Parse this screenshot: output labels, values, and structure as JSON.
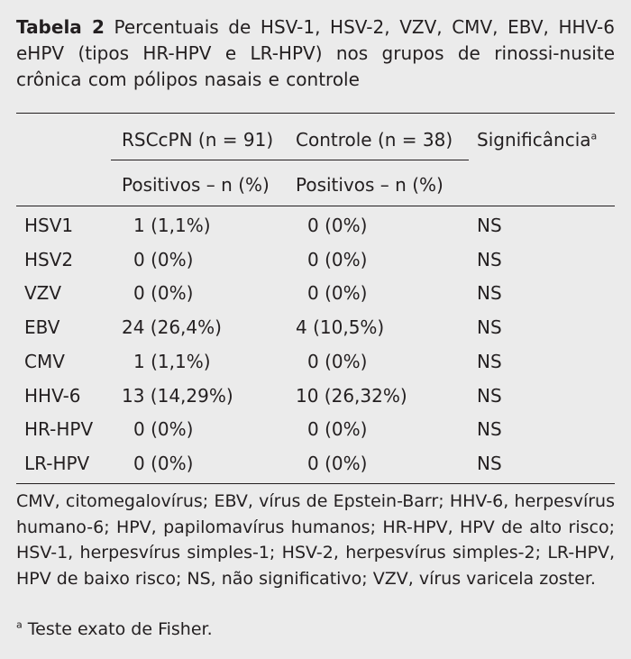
{
  "caption": {
    "label": "Tabela 2",
    "text": "Percentuais de HSV-1, HSV-2, VZV, CMV, EBV, HHV-6 eHPV (tipos HR-HPV e LR-HPV) nos grupos de rinossi-nusite crônica com pólipos nasais e controle"
  },
  "headers": {
    "group1": "RSCcPN (n = 91)",
    "group2": "Controle (n = 38)",
    "significance": "Significância",
    "significance_mark": "a",
    "sub1": "Positivos – n (%)",
    "sub2": "Positivos – n (%)"
  },
  "rows": [
    {
      "virus": "HSV1",
      "rsc": "1 (1,1%)",
      "ctrl": "0 (0%)",
      "sig": "NS"
    },
    {
      "virus": "HSV2",
      "rsc": "0 (0%)",
      "ctrl": "0 (0%)",
      "sig": "NS"
    },
    {
      "virus": "VZV",
      "rsc": "0 (0%)",
      "ctrl": "0 (0%)",
      "sig": "NS"
    },
    {
      "virus": "EBV",
      "rsc": "24 (26,4%)",
      "ctrl": "4 (10,5%)",
      "sig": "NS"
    },
    {
      "virus": "CMV",
      "rsc": "1 (1,1%)",
      "ctrl": "0 (0%)",
      "sig": "NS"
    },
    {
      "virus": "HHV-6",
      "rsc": "13 (14,29%)",
      "ctrl": "10 (26,32%)",
      "sig": "NS"
    },
    {
      "virus": "HR-HPV",
      "rsc": "0 (0%)",
      "ctrl": "0 (0%)",
      "sig": "NS"
    },
    {
      "virus": "LR-HPV",
      "rsc": "0 (0%)",
      "ctrl": "0 (0%)",
      "sig": "NS"
    }
  ],
  "footnote": {
    "abbreviations": "CMV, citomegalovírus; EBV, vírus de Epstein-Barr; HHV-6, herpesvírus humano-6; HPV, papilomavírus humanos; HR-HPV, HPV de alto risco; HSV-1, herpesvírus simples-1; HSV-2, herpesvírus simples-2; LR-HPV, HPV de baixo risco; NS, não significativo; VZV, vírus varicela zoster.",
    "fisher_mark": "a",
    "fisher": "Teste exato de Fisher."
  }
}
